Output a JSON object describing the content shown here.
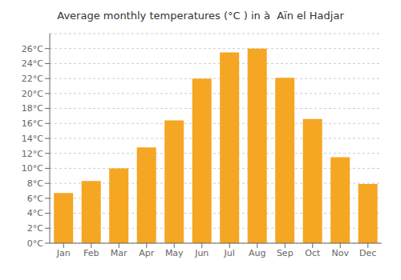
{
  "chart_data": {
    "type": "bar",
    "title": "Average monthly temperatures (°C ) in à  Aïn el Hadjar",
    "categories": [
      "Jan",
      "Feb",
      "Mar",
      "Apr",
      "May",
      "Jun",
      "Jul",
      "Aug",
      "Sep",
      "Oct",
      "Nov",
      "Dec"
    ],
    "values": [
      6.7,
      8.3,
      10.0,
      12.8,
      16.4,
      22.0,
      25.5,
      26.0,
      22.1,
      16.6,
      11.5,
      7.9
    ],
    "color": "#F5A623",
    "ylim": [
      0,
      28
    ],
    "yticks": [
      {
        "value": 0,
        "label": "0°C"
      },
      {
        "value": 2,
        "label": "2°C"
      },
      {
        "value": 4,
        "label": "4°C"
      },
      {
        "value": 6,
        "label": "6°C"
      },
      {
        "value": 8,
        "label": "8°C"
      },
      {
        "value": 10,
        "label": "10°C"
      },
      {
        "value": 12,
        "label": "12°C"
      },
      {
        "value": 14,
        "label": "14°C"
      },
      {
        "value": 16,
        "label": "16°C"
      },
      {
        "value": 18,
        "label": "18°C"
      },
      {
        "value": 20,
        "label": "20°C"
      },
      {
        "value": 22,
        "label": "22°C"
      },
      {
        "value": 24,
        "label": "24°C"
      },
      {
        "value": 26,
        "label": "26°C"
      }
    ],
    "grid": true
  }
}
